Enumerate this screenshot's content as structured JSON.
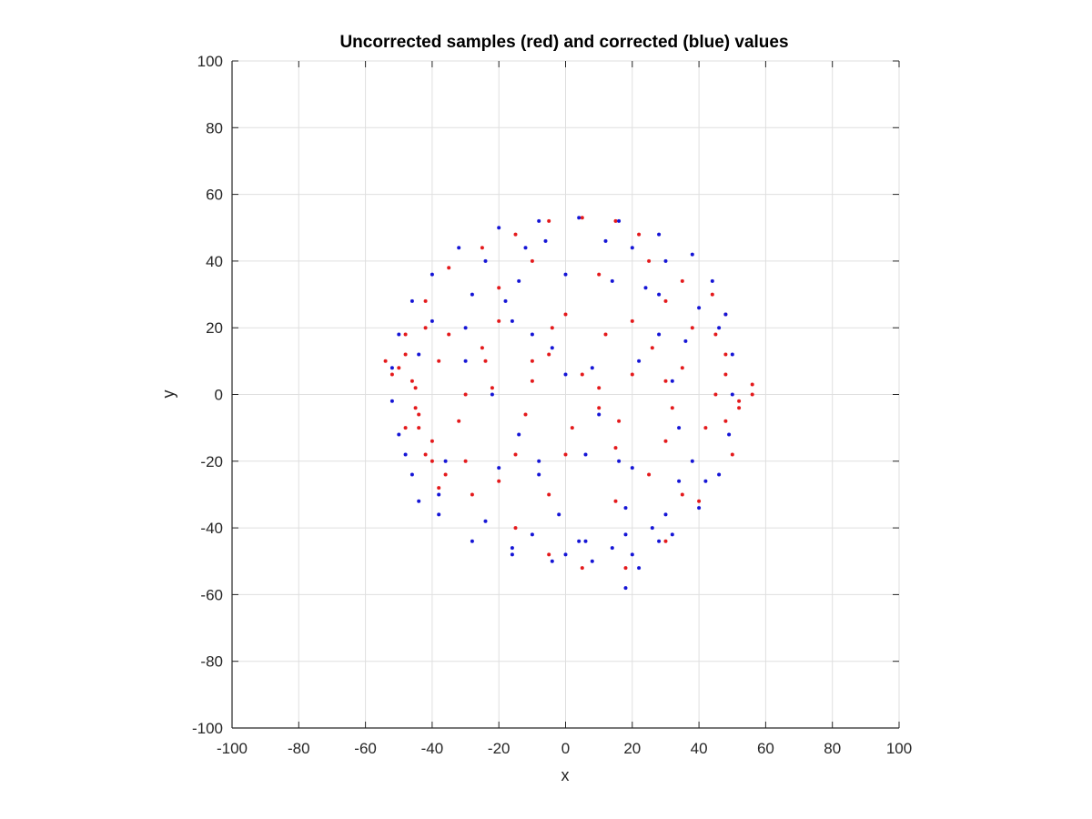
{
  "chart_data": {
    "type": "scatter",
    "title": "Uncorrected samples (red) and corrected (blue) values",
    "xlabel": "x",
    "ylabel": "y",
    "xlim": [
      -100,
      100
    ],
    "ylim": [
      -100,
      100
    ],
    "xticks": [
      "-100",
      "-80",
      "-60",
      "-40",
      "-20",
      "0",
      "20",
      "40",
      "60",
      "80",
      "100"
    ],
    "yticks": [
      "-100",
      "-80",
      "-60",
      "-40",
      "-20",
      "0",
      "20",
      "40",
      "60",
      "80",
      "100"
    ],
    "grid": true,
    "series": [
      {
        "color": "#e41a1c",
        "points": [
          [
            -54,
            10
          ],
          [
            -50,
            8
          ],
          [
            -46,
            4
          ],
          [
            -44,
            -6
          ],
          [
            -42,
            -18
          ],
          [
            -38,
            -28
          ],
          [
            -36,
            -24
          ],
          [
            -40,
            -14
          ],
          [
            -45,
            2
          ],
          [
            -48,
            12
          ],
          [
            -42,
            20
          ],
          [
            -35,
            18
          ],
          [
            -25,
            14
          ],
          [
            -10,
            10
          ],
          [
            5,
            6
          ],
          [
            20,
            6
          ],
          [
            35,
            8
          ],
          [
            48,
            6
          ],
          [
            56,
            3
          ],
          [
            56,
            0
          ],
          [
            52,
            -2
          ],
          [
            45,
            0
          ],
          [
            30,
            4
          ],
          [
            10,
            2
          ],
          [
            -10,
            4
          ],
          [
            -30,
            0
          ],
          [
            -45,
            -4
          ],
          [
            -48,
            -10
          ],
          [
            -40,
            -20
          ],
          [
            -28,
            -30
          ],
          [
            -15,
            -40
          ],
          [
            -5,
            -48
          ],
          [
            5,
            -52
          ],
          [
            18,
            -52
          ],
          [
            30,
            -44
          ],
          [
            40,
            -32
          ],
          [
            50,
            -18
          ],
          [
            52,
            -4
          ],
          [
            48,
            12
          ],
          [
            48,
            24
          ],
          [
            44,
            30
          ],
          [
            35,
            34
          ],
          [
            25,
            40
          ],
          [
            22,
            48
          ],
          [
            15,
            52
          ],
          [
            5,
            53
          ],
          [
            -5,
            52
          ],
          [
            -15,
            48
          ],
          [
            -25,
            44
          ],
          [
            -35,
            38
          ],
          [
            -42,
            28
          ],
          [
            -48,
            18
          ],
          [
            -52,
            6
          ],
          [
            -44,
            -10
          ],
          [
            -30,
            -20
          ],
          [
            -15,
            -18
          ],
          [
            0,
            -18
          ],
          [
            15,
            -16
          ],
          [
            30,
            -14
          ],
          [
            42,
            -10
          ],
          [
            48,
            -8
          ],
          [
            -38,
            10
          ],
          [
            -20,
            22
          ],
          [
            0,
            24
          ],
          [
            20,
            22
          ],
          [
            38,
            20
          ],
          [
            45,
            18
          ],
          [
            30,
            28
          ],
          [
            10,
            36
          ],
          [
            -10,
            40
          ],
          [
            -20,
            32
          ],
          [
            -5,
            12
          ],
          [
            10,
            -4
          ],
          [
            25,
            -24
          ],
          [
            35,
            -30
          ],
          [
            15,
            -32
          ],
          [
            -5,
            -30
          ],
          [
            -20,
            -26
          ],
          [
            -32,
            -8
          ],
          [
            -22,
            2
          ],
          [
            -12,
            -6
          ],
          [
            2,
            -10
          ],
          [
            16,
            -8
          ],
          [
            32,
            -4
          ],
          [
            26,
            14
          ],
          [
            12,
            18
          ],
          [
            -4,
            20
          ],
          [
            -24,
            10
          ]
        ]
      },
      {
        "color": "#1515d6",
        "points": [
          [
            -52,
            8
          ],
          [
            -50,
            18
          ],
          [
            -46,
            28
          ],
          [
            -40,
            36
          ],
          [
            -32,
            44
          ],
          [
            -20,
            50
          ],
          [
            -8,
            52
          ],
          [
            4,
            53
          ],
          [
            16,
            52
          ],
          [
            28,
            48
          ],
          [
            38,
            42
          ],
          [
            44,
            34
          ],
          [
            48,
            24
          ],
          [
            50,
            12
          ],
          [
            50,
            0
          ],
          [
            49,
            -12
          ],
          [
            46,
            -24
          ],
          [
            40,
            -34
          ],
          [
            32,
            -42
          ],
          [
            20,
            -48
          ],
          [
            8,
            -50
          ],
          [
            -4,
            -50
          ],
          [
            -16,
            -48
          ],
          [
            -28,
            -44
          ],
          [
            -38,
            -36
          ],
          [
            -46,
            -24
          ],
          [
            -50,
            -12
          ],
          [
            -52,
            -2
          ],
          [
            -40,
            22
          ],
          [
            -28,
            30
          ],
          [
            -14,
            34
          ],
          [
            0,
            36
          ],
          [
            14,
            34
          ],
          [
            28,
            30
          ],
          [
            40,
            26
          ],
          [
            -38,
            -30
          ],
          [
            -24,
            -38
          ],
          [
            -10,
            -42
          ],
          [
            4,
            -44
          ],
          [
            18,
            -42
          ],
          [
            30,
            -36
          ],
          [
            42,
            -26
          ],
          [
            -30,
            10
          ],
          [
            -22,
            0
          ],
          [
            -14,
            -12
          ],
          [
            -8,
            -24
          ],
          [
            -2,
            -36
          ],
          [
            6,
            -44
          ],
          [
            -24,
            40
          ],
          [
            -18,
            28
          ],
          [
            -10,
            18
          ],
          [
            0,
            6
          ],
          [
            10,
            -6
          ],
          [
            16,
            -20
          ],
          [
            18,
            -34
          ],
          [
            18,
            -58
          ],
          [
            22,
            -52
          ],
          [
            28,
            -44
          ],
          [
            20,
            44
          ],
          [
            24,
            32
          ],
          [
            28,
            18
          ],
          [
            32,
            4
          ],
          [
            34,
            -10
          ],
          [
            38,
            -20
          ],
          [
            -44,
            12
          ],
          [
            -30,
            20
          ],
          [
            -16,
            22
          ],
          [
            -4,
            14
          ],
          [
            8,
            8
          ],
          [
            22,
            10
          ],
          [
            36,
            16
          ],
          [
            46,
            20
          ],
          [
            -36,
            -20
          ],
          [
            -20,
            -22
          ],
          [
            -8,
            -20
          ],
          [
            6,
            -18
          ],
          [
            20,
            -22
          ],
          [
            34,
            -26
          ],
          [
            -6,
            46
          ],
          [
            -12,
            44
          ],
          [
            12,
            46
          ],
          [
            30,
            40
          ],
          [
            -48,
            -18
          ],
          [
            -44,
            -32
          ],
          [
            -16,
            -46
          ],
          [
            0,
            -48
          ],
          [
            14,
            -46
          ],
          [
            26,
            -40
          ]
        ]
      }
    ]
  }
}
